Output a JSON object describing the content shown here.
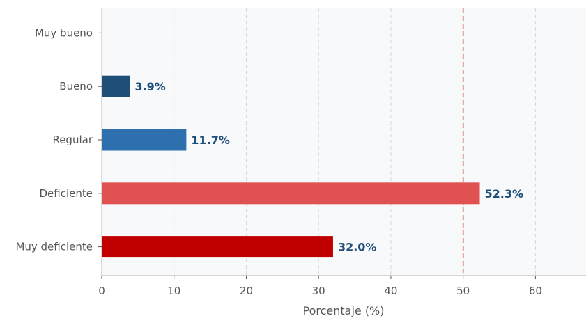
{
  "chart_data": {
    "type": "bar",
    "orientation": "horizontal",
    "categories": [
      "Muy bueno",
      "Bueno",
      "Regular",
      "Deficiente",
      "Muy deficiente"
    ],
    "values": [
      0,
      3.9,
      11.7,
      52.3,
      32.0
    ],
    "data_labels": [
      "",
      "3.9%",
      "11.7%",
      "52.3%",
      "32.0%"
    ],
    "bar_colors": [
      "#1f4e79",
      "#1f4e79",
      "#2e6fad",
      "#e05252",
      "#c00000"
    ],
    "label_color": "#1f4e79",
    "title": "",
    "xlabel": "Porcentaje (%)",
    "ylabel": "",
    "xlim": [
      0,
      67
    ],
    "xticks": [
      0,
      10,
      20,
      30,
      40,
      50,
      60
    ],
    "reference_line": {
      "x": 50,
      "color": "#d9534f",
      "style": "dashed"
    },
    "grid": "vertical dashed",
    "background": "#f7f9fb"
  }
}
